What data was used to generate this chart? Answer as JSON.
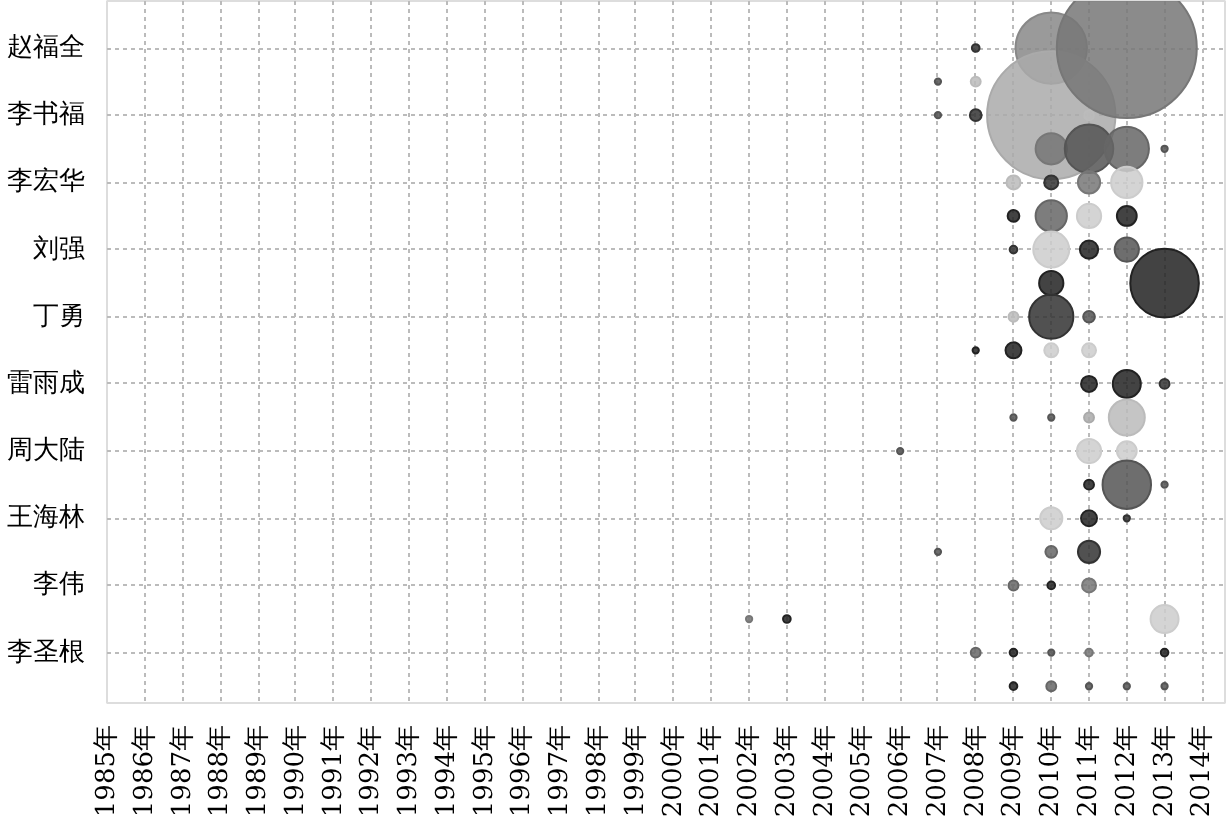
{
  "chart_data": {
    "type": "bubble",
    "orientation": "horizontal",
    "marker": "circle",
    "grid": true,
    "xlim": [
      1985,
      2014.6
    ],
    "xticks": [
      {
        "value": 1985,
        "label": "1985年"
      },
      {
        "value": 1986,
        "label": "1986年"
      },
      {
        "value": 1987,
        "label": "1987年"
      },
      {
        "value": 1988,
        "label": "1988年"
      },
      {
        "value": 1989,
        "label": "1989年"
      },
      {
        "value": 1990,
        "label": "1990年"
      },
      {
        "value": 1991,
        "label": "1991年"
      },
      {
        "value": 1992,
        "label": "1992年"
      },
      {
        "value": 1993,
        "label": "1993年"
      },
      {
        "value": 1994,
        "label": "1994年"
      },
      {
        "value": 1995,
        "label": "1995年"
      },
      {
        "value": 1996,
        "label": "1996年"
      },
      {
        "value": 1997,
        "label": "1997年"
      },
      {
        "value": 1998,
        "label": "1998年"
      },
      {
        "value": 1999,
        "label": "1999年"
      },
      {
        "value": 2000,
        "label": "2000年"
      },
      {
        "value": 2001,
        "label": "2001年"
      },
      {
        "value": 2002,
        "label": "2002年"
      },
      {
        "value": 2003,
        "label": "2003年"
      },
      {
        "value": 2004,
        "label": "2004年"
      },
      {
        "value": 2005,
        "label": "2005年"
      },
      {
        "value": 2006,
        "label": "2006年"
      },
      {
        "value": 2007,
        "label": "2007年"
      },
      {
        "value": 2008,
        "label": "2008年"
      },
      {
        "value": 2009,
        "label": "2009年"
      },
      {
        "value": 2010,
        "label": "2010年"
      },
      {
        "value": 2011,
        "label": "2011年"
      },
      {
        "value": 2012,
        "label": "2012年"
      },
      {
        "value": 2013,
        "label": "2013年"
      },
      {
        "value": 2014,
        "label": "2014年"
      }
    ],
    "categories": [
      "赵福全",
      null,
      "李书福",
      null,
      "李宏华",
      null,
      "刘强",
      null,
      "丁勇",
      null,
      "雷雨成",
      null,
      "周大陆",
      null,
      "王海林",
      null,
      "李伟",
      null,
      "李圣根",
      null
    ],
    "series": [
      {
        "values": [
          null,
          null,
          null,
          null,
          null,
          null,
          null,
          null,
          null,
          null,
          null,
          null,
          null,
          null,
          null,
          null,
          null,
          2002,
          null,
          null
        ],
        "sizes": [
          null,
          null,
          null,
          null,
          null,
          null,
          null,
          null,
          null,
          null,
          null,
          null,
          null,
          null,
          null,
          null,
          null,
          0.002,
          null,
          null
        ],
        "colors": [
          null,
          null,
          null,
          null,
          null,
          null,
          null,
          null,
          null,
          null,
          null,
          null,
          null,
          null,
          null,
          null,
          null,
          "#777777",
          null,
          null
        ]
      },
      {
        "values": [
          null,
          null,
          null,
          null,
          null,
          null,
          null,
          null,
          null,
          null,
          null,
          null,
          null,
          null,
          null,
          null,
          null,
          2003,
          null,
          null
        ],
        "sizes": [
          null,
          null,
          null,
          null,
          null,
          null,
          null,
          null,
          null,
          null,
          null,
          null,
          null,
          null,
          null,
          null,
          null,
          0.003,
          null,
          null
        ],
        "colors": [
          null,
          null,
          null,
          null,
          null,
          null,
          null,
          null,
          null,
          null,
          null,
          null,
          null,
          null,
          null,
          null,
          null,
          "#222222",
          null,
          null
        ]
      },
      {
        "values": [
          null,
          null,
          null,
          null,
          null,
          null,
          null,
          null,
          null,
          null,
          null,
          null,
          2006,
          null,
          null,
          null,
          null,
          null,
          null,
          null
        ],
        "sizes": [
          null,
          null,
          null,
          null,
          null,
          null,
          null,
          null,
          null,
          null,
          null,
          null,
          0.002,
          null,
          null,
          null,
          null,
          null,
          null,
          null
        ],
        "colors": [
          null,
          null,
          null,
          null,
          null,
          null,
          null,
          null,
          null,
          null,
          null,
          null,
          "#555555",
          null,
          null,
          null,
          null,
          null,
          null,
          null
        ]
      },
      {
        "values": [
          null,
          2007,
          2007,
          null,
          null,
          null,
          null,
          null,
          null,
          null,
          null,
          null,
          null,
          null,
          null,
          2007,
          null,
          null,
          null,
          null
        ],
        "sizes": [
          null,
          0.002,
          0.002,
          null,
          null,
          null,
          null,
          null,
          null,
          null,
          null,
          null,
          null,
          null,
          null,
          0.002,
          null,
          null,
          null,
          null
        ],
        "colors": [
          null,
          "#555555",
          "#555555",
          null,
          null,
          null,
          null,
          null,
          null,
          null,
          null,
          null,
          null,
          null,
          null,
          "#555555",
          null,
          null,
          null,
          null
        ]
      },
      {
        "values": [
          2008,
          2008,
          2008,
          null,
          null,
          null,
          null,
          null,
          null,
          2008,
          null,
          null,
          null,
          null,
          null,
          null,
          null,
          null,
          2008,
          null
        ],
        "sizes": [
          0.003,
          0.005,
          0.007,
          null,
          null,
          null,
          null,
          null,
          null,
          0.002,
          null,
          null,
          null,
          null,
          null,
          null,
          null,
          null,
          0.005,
          null
        ],
        "colors": [
          "#333333",
          "#bbbbbb",
          "#333333",
          null,
          null,
          null,
          null,
          null,
          null,
          "#222222",
          null,
          null,
          null,
          null,
          null,
          null,
          null,
          null,
          "#666666",
          null
        ]
      },
      {
        "values": [
          null,
          null,
          null,
          null,
          2009,
          2009,
          2009,
          null,
          2009,
          2009,
          null,
          2009,
          null,
          null,
          null,
          null,
          2009,
          null,
          2009,
          2009
        ],
        "sizes": [
          null,
          null,
          null,
          null,
          0.01,
          0.007,
          0.003,
          null,
          0.005,
          0.013,
          null,
          0.002,
          null,
          null,
          null,
          null,
          0.005,
          null,
          0.003,
          0.003
        ],
        "colors": [
          null,
          null,
          null,
          null,
          "#bbbbbb",
          "#222222",
          "#333333",
          null,
          "#bbbbbb",
          "#222222",
          null,
          "#555555",
          null,
          null,
          null,
          null,
          "#666666",
          null,
          "#222222",
          "#222222"
        ]
      },
      {
        "values": [
          2010,
          null,
          2010,
          2010,
          2010,
          2010,
          2010,
          2010,
          2010,
          2010,
          null,
          2010,
          null,
          null,
          2010,
          2010,
          2010,
          null,
          2010,
          2010
        ],
        "sizes": [
          0.26,
          null,
          0.84,
          0.05,
          0.01,
          0.05,
          0.066,
          0.03,
          0.1,
          0.01,
          null,
          0.002,
          null,
          null,
          0.025,
          0.007,
          0.003,
          null,
          0.002,
          0.005
        ],
        "colors": [
          "#888888",
          null,
          "#aaaaaa",
          "#777777",
          "#333333",
          "#666666",
          "#cccccc",
          "#222222",
          "#333333",
          "#cccccc",
          null,
          "#555555",
          null,
          null,
          "#cccccc",
          "#666666",
          "#222222",
          null,
          "#555555",
          "#666666"
        ]
      },
      {
        "values": [
          null,
          null,
          2011,
          2011,
          2011,
          2011,
          2011,
          null,
          2011,
          2011,
          2011,
          2011,
          2011,
          2011,
          2011,
          2011,
          2011,
          null,
          2011,
          2011
        ],
        "sizes": [
          null,
          null,
          0.005,
          0.12,
          0.025,
          0.03,
          0.017,
          null,
          0.007,
          0.01,
          0.013,
          0.005,
          0.03,
          0.005,
          0.013,
          0.025,
          0.01,
          null,
          0.003,
          0.002
        ],
        "colors": [
          null,
          null,
          "#bbbbbb",
          "#555555",
          "#777777",
          "#cccccc",
          "#222222",
          null,
          "#555555",
          "#cccccc",
          "#222222",
          "#aaaaaa",
          "#cccccc",
          "#222222",
          "#222222",
          "#333333",
          "#777777",
          null,
          "#777777",
          "#555555"
        ]
      },
      {
        "values": [
          2012,
          null,
          null,
          2012,
          2012,
          2012,
          2012,
          null,
          null,
          null,
          2012,
          2012,
          2012,
          2012,
          2012,
          null,
          null,
          null,
          null,
          2012
        ],
        "sizes": [
          1,
          null,
          null,
          0.1,
          0.05,
          0.02,
          0.03,
          null,
          null,
          null,
          0.04,
          0.066,
          0.02,
          0.12,
          0.002,
          null,
          null,
          null,
          null,
          0.002
        ],
        "colors": [
          "#777777",
          null,
          null,
          "#666666",
          "#cccccc",
          "#222222",
          "#555555",
          null,
          null,
          null,
          "#222222",
          "#bbbbbb",
          "#cccccc",
          "#555555",
          "#333333",
          null,
          null,
          null,
          null,
          "#555555"
        ]
      },
      {
        "values": [
          null,
          null,
          null,
          2013,
          null,
          null,
          null,
          2013,
          null,
          null,
          2013,
          null,
          null,
          2013,
          null,
          null,
          null,
          2013,
          2013,
          2013
        ],
        "sizes": [
          null,
          null,
          null,
          0.002,
          null,
          null,
          null,
          0.24,
          null,
          null,
          0.005,
          null,
          null,
          0.002,
          null,
          null,
          null,
          0.04,
          0.003,
          0.002
        ],
        "colors": [
          null,
          null,
          null,
          "#555555",
          null,
          null,
          null,
          "#222222",
          null,
          null,
          "#333333",
          null,
          null,
          "#555555",
          null,
          null,
          null,
          "#cccccc",
          "#222222",
          "#555555"
        ]
      }
    ]
  }
}
